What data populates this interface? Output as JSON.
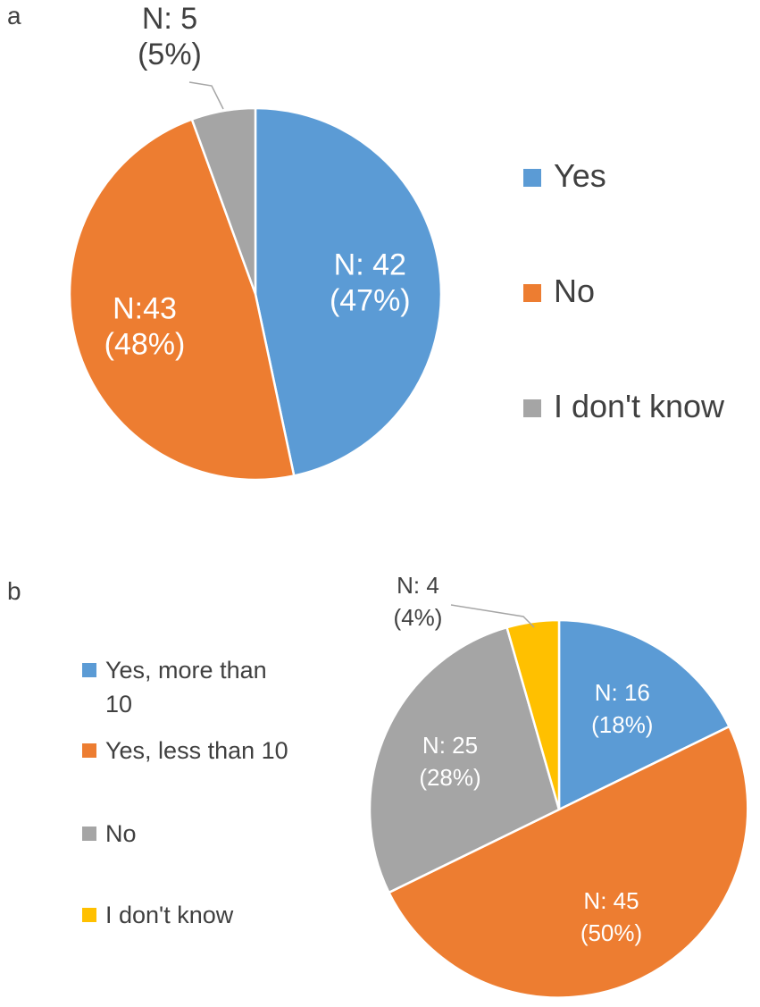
{
  "panels": {
    "a": "a",
    "b": "b"
  },
  "chart_data": [
    {
      "type": "pie",
      "panel": "a",
      "start_angle_deg": 0,
      "slices": [
        {
          "label": "Yes",
          "n": 42,
          "percent": 47,
          "color": "#5B9BD5",
          "text_color": "#FFFFFF",
          "data_label": [
            "N: 42",
            "(47%)"
          ]
        },
        {
          "label": "No",
          "n": 43,
          "percent": 48,
          "color": "#ED7D31",
          "text_color": "#FFFFFF",
          "data_label": [
            "N:43",
            "(48%)"
          ]
        },
        {
          "label": "I don't know",
          "n": 5,
          "percent": 5,
          "color": "#A5A5A5",
          "text_color": "#404040",
          "data_label": [
            "N: 5",
            "(5%)"
          ],
          "callout": true
        }
      ],
      "legend": {
        "placement": "right",
        "entries": [
          "Yes",
          "No",
          "I don't know"
        ]
      }
    },
    {
      "type": "pie",
      "panel": "b",
      "start_angle_deg": 0,
      "slices": [
        {
          "label": "Yes, more than 10",
          "n": 16,
          "percent": 18,
          "color": "#5B9BD5",
          "text_color": "#FFFFFF",
          "data_label": [
            "N: 16",
            "(18%)"
          ]
        },
        {
          "label": "Yes, less than 10",
          "n": 45,
          "percent": 50,
          "color": "#ED7D31",
          "text_color": "#FFFFFF",
          "data_label": [
            "N: 45",
            "(50%)"
          ]
        },
        {
          "label": "No",
          "n": 25,
          "percent": 28,
          "color": "#A5A5A5",
          "text_color": "#FFFFFF",
          "data_label": [
            "N: 25",
            "(28%)"
          ]
        },
        {
          "label": "I don't know",
          "n": 4,
          "percent": 4,
          "color": "#FFC000",
          "text_color": "#404040",
          "data_label": [
            "N: 4",
            "(4%)"
          ],
          "callout": true
        }
      ],
      "legend": {
        "placement": "left",
        "entries": [
          [
            "Yes, more than",
            "10"
          ],
          [
            "Yes, less than 10"
          ],
          [
            "No"
          ],
          [
            "I don't know"
          ]
        ]
      }
    }
  ]
}
